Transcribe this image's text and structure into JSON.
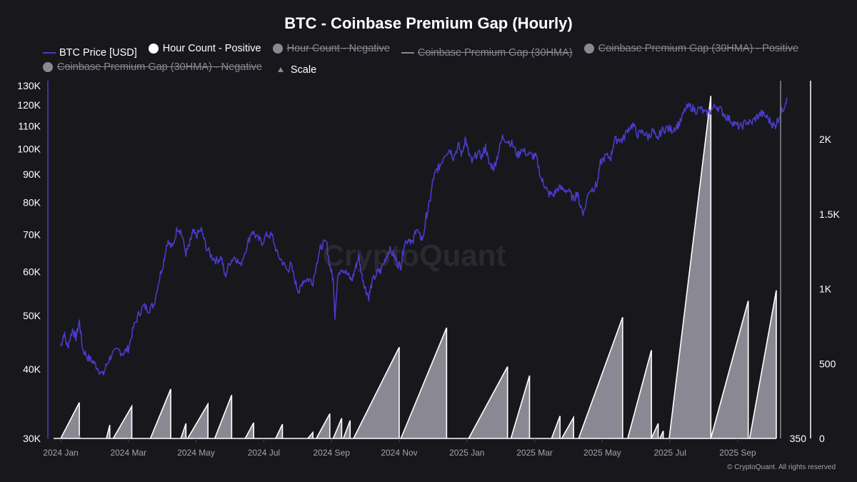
{
  "chart_data": {
    "type": "line",
    "title": "BTC - Coinbase Premium Gap (Hourly)",
    "legend_position": "top",
    "legend": [
      {
        "label": "BTC Price [USD]",
        "swatch": "line",
        "color": "#4a3bc9",
        "enabled": true
      },
      {
        "label": "Hour Count - Positive",
        "swatch": "dot",
        "color": "#ffffff",
        "enabled": true
      },
      {
        "label": "Hour Count - Negative",
        "swatch": "dot",
        "color": "#8a8993",
        "enabled": false
      },
      {
        "label": "Coinbase Premium Gap (30HMA)",
        "swatch": "line",
        "color": "#8a8993",
        "enabled": false
      },
      {
        "label": "Coinbase Premium Gap (30HMA) - Positive",
        "swatch": "dot",
        "color": "#8a8993",
        "enabled": false
      },
      {
        "label": "Coinbase Premium Gap (30HMA) - Negative",
        "swatch": "dot",
        "color": "#8a8993",
        "enabled": false
      },
      {
        "label": "Scale",
        "swatch": "triangle",
        "color": "#8a8993",
        "enabled": true
      }
    ],
    "x_ticks": [
      "2024 Jan",
      "2024 Mar",
      "2024 May",
      "2024 Jul",
      "2024 Sep",
      "2024 Nov",
      "2025 Jan",
      "2025 Mar",
      "2025 May",
      "2025 Jul",
      "2025 Sep"
    ],
    "x_range_months": [
      0,
      21.5
    ],
    "y_left": {
      "label": "BTC Price [USD]",
      "scale": "log",
      "range": [
        30000,
        130000
      ],
      "ticks": [
        "30K",
        "40K",
        "50K",
        "60K",
        "70K",
        "80K",
        "90K",
        "100K",
        "110K",
        "120K",
        "130K"
      ],
      "tick_values": [
        30000,
        40000,
        50000,
        60000,
        70000,
        80000,
        90000,
        100000,
        110000,
        120000,
        130000
      ]
    },
    "y_right": {
      "label": "Hour Count",
      "range": [
        0,
        2350
      ],
      "ticks": [
        "0",
        "500",
        "1K",
        "1.5K",
        "2K"
      ],
      "tick_values": [
        0,
        500,
        1000,
        1500,
        2000
      ]
    },
    "y_mid_label": "350",
    "grid": false,
    "series": [
      {
        "name": "BTC Price [USD]",
        "color": "#4a3bc9",
        "points_month_price": [
          [
            0.0,
            44000
          ],
          [
            0.1,
            46500
          ],
          [
            0.2,
            43800
          ],
          [
            0.35,
            47200
          ],
          [
            0.45,
            45600
          ],
          [
            0.55,
            48800
          ],
          [
            0.65,
            43500
          ],
          [
            0.8,
            42000
          ],
          [
            0.95,
            41300
          ],
          [
            1.1,
            40200
          ],
          [
            1.25,
            39000
          ],
          [
            1.35,
            40700
          ],
          [
            1.5,
            42500
          ],
          [
            1.7,
            43200
          ],
          [
            1.85,
            42800
          ],
          [
            2.0,
            43600
          ],
          [
            2.15,
            47500
          ],
          [
            2.3,
            50200
          ],
          [
            2.45,
            52000
          ],
          [
            2.6,
            51300
          ],
          [
            2.75,
            52300
          ],
          [
            2.9,
            57800
          ],
          [
            3.05,
            63000
          ],
          [
            3.15,
            68000
          ],
          [
            3.3,
            66200
          ],
          [
            3.45,
            72200
          ],
          [
            3.55,
            71000
          ],
          [
            3.7,
            64800
          ],
          [
            3.8,
            66800
          ],
          [
            3.9,
            70800
          ],
          [
            4.0,
            69600
          ],
          [
            4.15,
            71500
          ],
          [
            4.3,
            66500
          ],
          [
            4.45,
            64000
          ],
          [
            4.6,
            62800
          ],
          [
            4.75,
            63800
          ],
          [
            4.85,
            58800
          ],
          [
            5.0,
            62500
          ],
          [
            5.15,
            64000
          ],
          [
            5.3,
            61500
          ],
          [
            5.5,
            66800
          ],
          [
            5.65,
            71200
          ],
          [
            5.8,
            69000
          ],
          [
            5.95,
            67800
          ],
          [
            6.1,
            70100
          ],
          [
            6.25,
            69500
          ],
          [
            6.4,
            64500
          ],
          [
            6.55,
            62500
          ],
          [
            6.7,
            60200
          ],
          [
            6.8,
            61800
          ],
          [
            6.95,
            57000
          ],
          [
            7.05,
            55200
          ],
          [
            7.15,
            57800
          ],
          [
            7.3,
            58200
          ],
          [
            7.45,
            57500
          ],
          [
            7.6,
            64000
          ],
          [
            7.7,
            66800
          ],
          [
            7.85,
            67800
          ],
          [
            7.95,
            61500
          ],
          [
            8.05,
            58000
          ],
          [
            8.1,
            50000
          ],
          [
            8.2,
            59800
          ],
          [
            8.3,
            61000
          ],
          [
            8.45,
            59500
          ],
          [
            8.6,
            57800
          ],
          [
            8.7,
            60800
          ],
          [
            8.8,
            64000
          ],
          [
            8.9,
            59000
          ],
          [
            9.0,
            56000
          ],
          [
            9.1,
            54000
          ],
          [
            9.2,
            57500
          ],
          [
            9.35,
            59800
          ],
          [
            9.45,
            60200
          ],
          [
            9.6,
            63500
          ],
          [
            9.7,
            65800
          ],
          [
            9.85,
            64200
          ],
          [
            9.95,
            62000
          ],
          [
            10.05,
            61500
          ],
          [
            10.15,
            67500
          ],
          [
            10.3,
            69000
          ],
          [
            10.4,
            67200
          ],
          [
            10.5,
            72300
          ],
          [
            10.6,
            69500
          ],
          [
            10.7,
            68800
          ],
          [
            10.8,
            75500
          ],
          [
            10.9,
            80000
          ],
          [
            11.0,
            88000
          ],
          [
            11.1,
            91500
          ],
          [
            11.2,
            93000
          ],
          [
            11.35,
            98000
          ],
          [
            11.5,
            99800
          ],
          [
            11.6,
            96500
          ],
          [
            11.75,
            101500
          ],
          [
            11.85,
            97500
          ],
          [
            11.95,
            104500
          ],
          [
            12.05,
            98000
          ],
          [
            12.15,
            94500
          ],
          [
            12.3,
            98200
          ],
          [
            12.45,
            97000
          ],
          [
            12.55,
            101000
          ],
          [
            12.65,
            94000
          ],
          [
            12.8,
            92500
          ],
          [
            12.9,
            97000
          ],
          [
            13.05,
            105000
          ],
          [
            13.2,
            103500
          ],
          [
            13.35,
            101800
          ],
          [
            13.5,
            97200
          ],
          [
            13.6,
            99500
          ],
          [
            13.8,
            98000
          ],
          [
            13.95,
            97000
          ],
          [
            14.05,
            96500
          ],
          [
            14.2,
            88000
          ],
          [
            14.3,
            86000
          ],
          [
            14.4,
            83000
          ],
          [
            14.55,
            82500
          ],
          [
            14.7,
            85000
          ],
          [
            14.85,
            84500
          ],
          [
            15.0,
            84000
          ],
          [
            15.15,
            81000
          ],
          [
            15.25,
            83500
          ],
          [
            15.35,
            79000
          ],
          [
            15.45,
            76500
          ],
          [
            15.6,
            84000
          ],
          [
            15.75,
            85000
          ],
          [
            15.85,
            86500
          ],
          [
            15.95,
            94500
          ],
          [
            16.1,
            97000
          ],
          [
            16.25,
            96500
          ],
          [
            16.35,
            103500
          ],
          [
            16.5,
            104200
          ],
          [
            16.6,
            103500
          ],
          [
            16.75,
            108500
          ],
          [
            16.9,
            110500
          ],
          [
            17.05,
            106000
          ],
          [
            17.2,
            107500
          ],
          [
            17.35,
            105000
          ],
          [
            17.5,
            108000
          ],
          [
            17.6,
            103500
          ],
          [
            17.75,
            107800
          ],
          [
            17.9,
            109000
          ],
          [
            18.05,
            108200
          ],
          [
            18.2,
            110000
          ],
          [
            18.3,
            111500
          ],
          [
            18.45,
            118000
          ],
          [
            18.6,
            119300
          ],
          [
            18.75,
            117200
          ],
          [
            18.9,
            118300
          ],
          [
            19.05,
            115500
          ],
          [
            19.2,
            117000
          ],
          [
            19.35,
            119800
          ],
          [
            19.5,
            117500
          ],
          [
            19.65,
            114500
          ],
          [
            19.8,
            112500
          ],
          [
            19.95,
            110300
          ],
          [
            20.1,
            109500
          ],
          [
            20.25,
            112000
          ],
          [
            20.4,
            111200
          ],
          [
            20.55,
            114000
          ],
          [
            20.7,
            115800
          ],
          [
            20.85,
            114300
          ],
          [
            21.0,
            111200
          ],
          [
            21.1,
            109800
          ],
          [
            21.2,
            113500
          ],
          [
            21.35,
            118500
          ],
          [
            21.45,
            123800
          ]
        ]
      },
      {
        "name": "Hour Count - Positive",
        "color": "#ffffff",
        "fill": "#8a8993",
        "ramps_month_start_end_peak": [
          [
            0.0,
            0.55,
            240
          ],
          [
            1.35,
            1.45,
            90
          ],
          [
            1.55,
            2.1,
            215
          ],
          [
            2.65,
            3.25,
            330
          ],
          [
            3.55,
            3.7,
            100
          ],
          [
            3.75,
            4.35,
            230
          ],
          [
            4.55,
            5.05,
            290
          ],
          [
            5.45,
            5.7,
            105
          ],
          [
            6.35,
            6.55,
            95
          ],
          [
            7.3,
            7.45,
            40
          ],
          [
            7.55,
            7.95,
            165
          ],
          [
            8.05,
            8.3,
            135
          ],
          [
            8.35,
            8.55,
            120
          ],
          [
            8.65,
            10.0,
            610
          ],
          [
            10.05,
            11.4,
            740
          ],
          [
            12.05,
            13.2,
            480
          ],
          [
            13.3,
            13.85,
            420
          ],
          [
            14.5,
            14.75,
            150
          ],
          [
            14.8,
            15.15,
            140
          ],
          [
            15.3,
            16.6,
            810
          ],
          [
            16.75,
            17.45,
            590
          ],
          [
            17.45,
            17.65,
            100
          ],
          [
            17.7,
            17.8,
            50
          ],
          [
            18.05,
            22.6,
            2290
          ],
          [
            22.6,
            23.9,
            920
          ],
          [
            23.95,
            25.25,
            990
          ]
        ]
      }
    ]
  },
  "footer": {
    "copyright": "© CryptoQuant. All rights reserved"
  },
  "watermark": "CryptoQuant"
}
